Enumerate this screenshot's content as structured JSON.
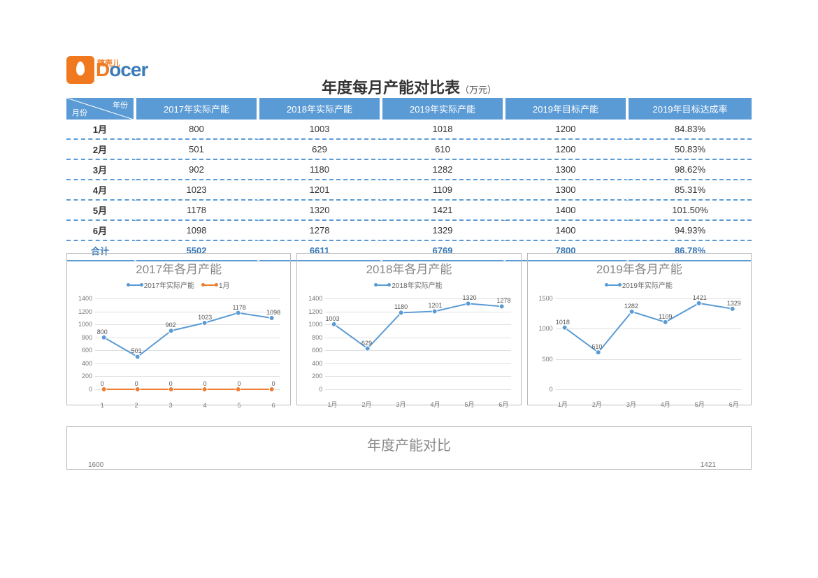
{
  "logo": {
    "cn": "稿壳儿",
    "en_o": "D",
    "en_rest": "ocer"
  },
  "title": {
    "main": "年度每月产能对比表",
    "unit": "（万元）"
  },
  "table": {
    "diag_year": "年份",
    "diag_month": "月份",
    "columns": [
      "2017年实际产能",
      "2018年实际产能",
      "2019年实际产能",
      "2019年目标产能",
      "2019年目标达成率"
    ],
    "months": [
      "1月",
      "2月",
      "3月",
      "4月",
      "5月",
      "6月"
    ],
    "rows": [
      [
        "800",
        "1003",
        "1018",
        "1200",
        "84.83%"
      ],
      [
        "501",
        "629",
        "610",
        "1200",
        "50.83%"
      ],
      [
        "902",
        "1180",
        "1282",
        "1300",
        "98.62%"
      ],
      [
        "1023",
        "1201",
        "1109",
        "1300",
        "85.31%"
      ],
      [
        "1178",
        "1320",
        "1421",
        "1400",
        "101.50%"
      ],
      [
        "1098",
        "1278",
        "1329",
        "1400",
        "94.93%"
      ]
    ],
    "total_label": "合计",
    "total": [
      "5502",
      "6611",
      "6769",
      "7800",
      "86.78%"
    ]
  },
  "charts": [
    {
      "title": "2017年各月产能",
      "legend": [
        {
          "label": "2017年实际产能",
          "color": "#5b9bd5"
        },
        {
          "label": "1月",
          "color": "#ed7d31"
        }
      ],
      "xlabels": [
        "1",
        "2",
        "3",
        "4",
        "5",
        "6"
      ],
      "ymin": 0,
      "ymax": 1400,
      "ystep": 200,
      "series": [
        {
          "color": "#5b9bd5",
          "values": [
            800,
            501,
            902,
            1023,
            1178,
            1098
          ],
          "labels": [
            "800",
            "501",
            "902",
            "1023",
            "1178",
            "1098"
          ]
        },
        {
          "color": "#ed7d31",
          "values": [
            0,
            0,
            0,
            0,
            0,
            0
          ],
          "labels": [
            "0",
            "0",
            "0",
            "0",
            "0",
            "0"
          ]
        }
      ]
    },
    {
      "title": "2018年各月产能",
      "legend": [
        {
          "label": "2018年实际产能",
          "color": "#5b9bd5"
        }
      ],
      "xlabels": [
        "1月",
        "2月",
        "3月",
        "4月",
        "5月",
        "6月"
      ],
      "ymin": 0,
      "ymax": 1400,
      "ystep": 200,
      "series": [
        {
          "color": "#5b9bd5",
          "values": [
            1003,
            629,
            1180,
            1201,
            1320,
            1278
          ],
          "labels": [
            "1003",
            "629",
            "1180",
            "1201",
            "1320",
            "1278"
          ]
        }
      ]
    },
    {
      "title": "2019年各月产能",
      "legend": [
        {
          "label": "2019年实际产能",
          "color": "#5b9bd5"
        }
      ],
      "xlabels": [
        "1月",
        "2月",
        "3月",
        "4月",
        "5月",
        "6月"
      ],
      "ymin": 0,
      "ymax": 1500,
      "ystep": 500,
      "series": [
        {
          "color": "#5b9bd5",
          "values": [
            1018,
            610,
            1282,
            1109,
            1421,
            1329
          ],
          "labels": [
            "1018",
            "610",
            "1282",
            "1109",
            "1421",
            "1329"
          ]
        }
      ]
    }
  ],
  "big_chart": {
    "title": "年度产能对比",
    "ylabel": "1600",
    "right_label": "1421"
  },
  "colors": {
    "header": "#5b9bd5",
    "dash": "#5b9bd5",
    "total": "#3a7bb8",
    "orange": "#ed7d31"
  }
}
